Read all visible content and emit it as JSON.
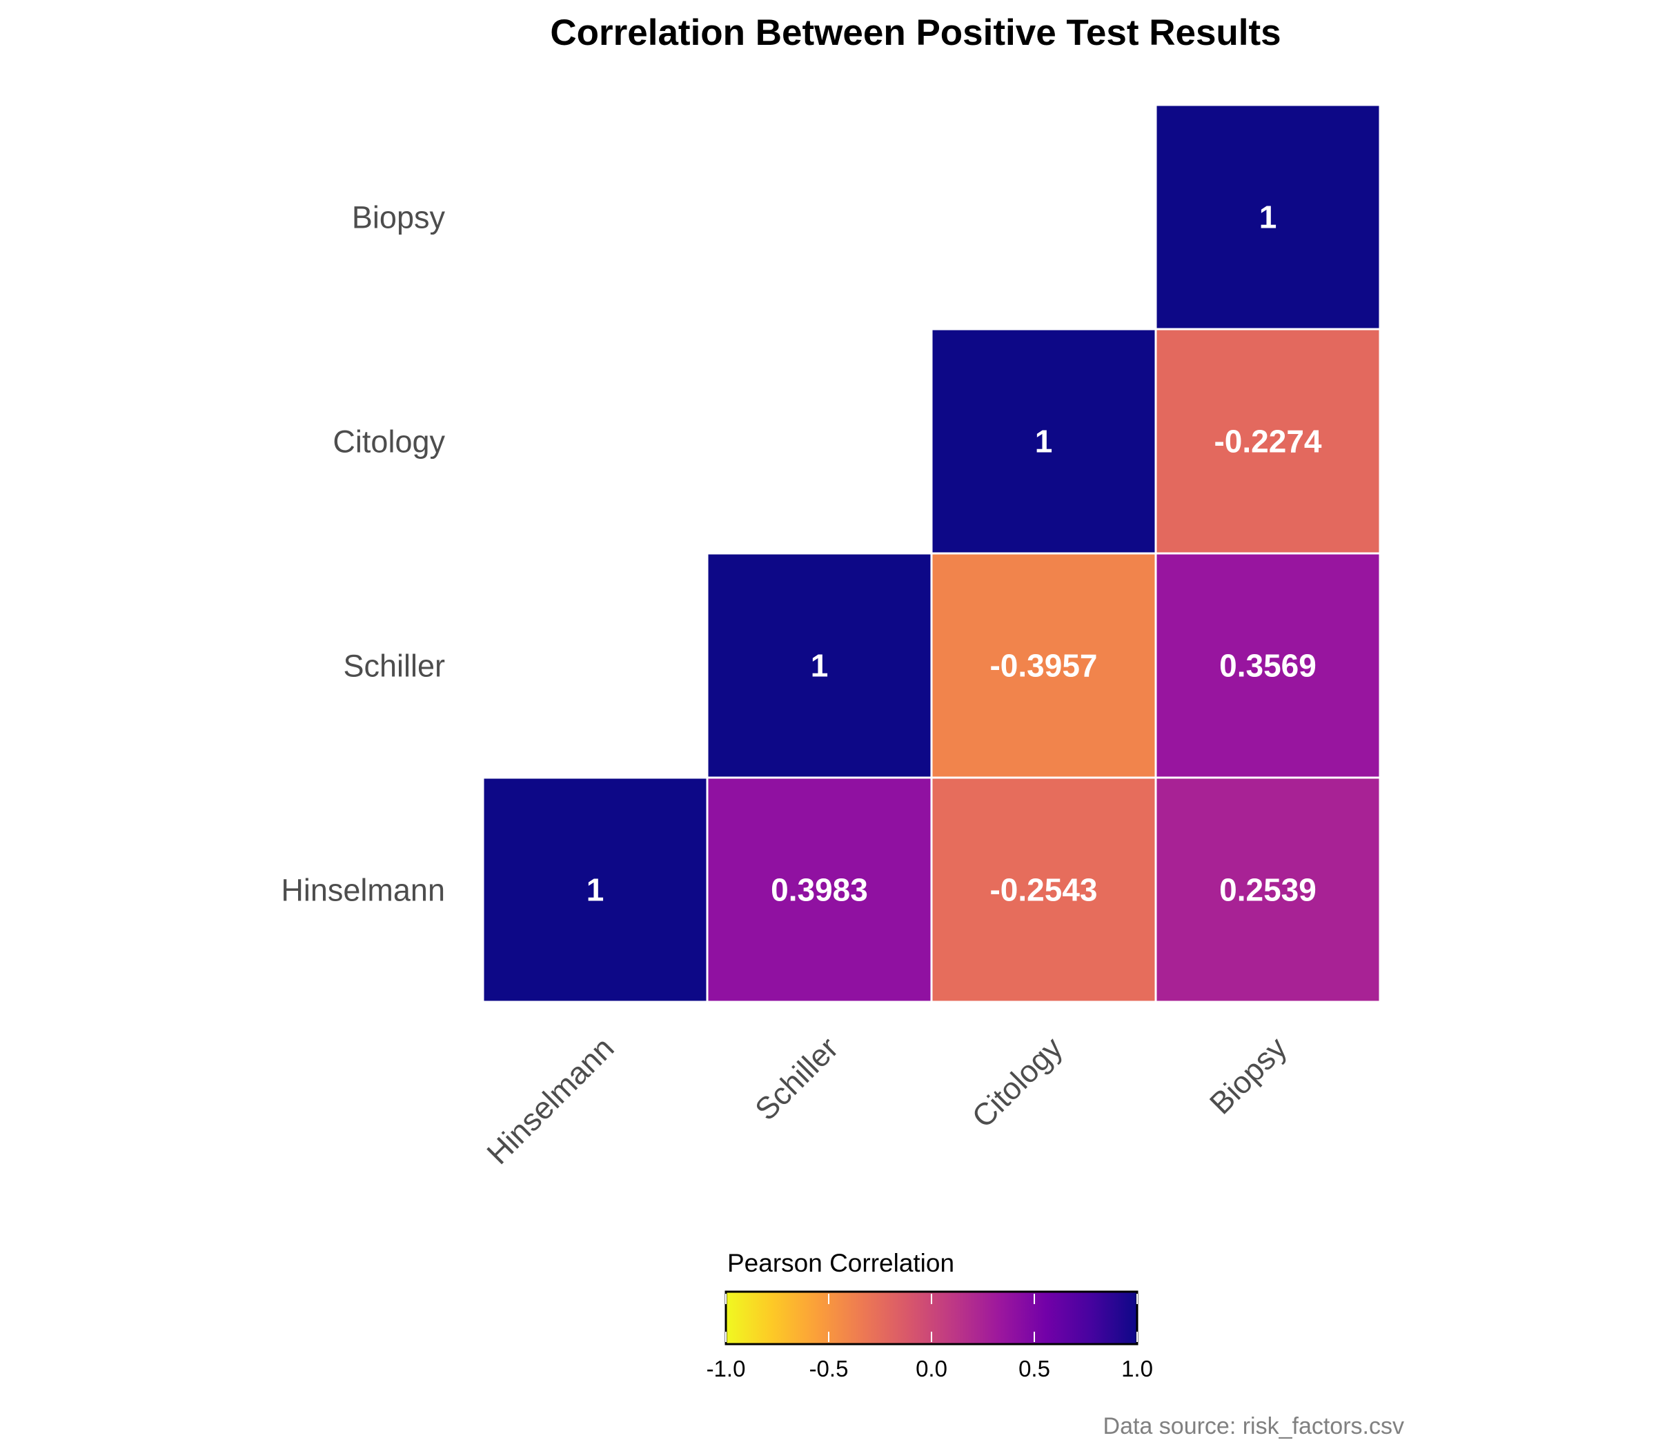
{
  "chart_data": {
    "type": "heatmap",
    "title": "Correlation Between Positive Test Results",
    "variables": [
      "Hinselmann",
      "Schiller",
      "Citology",
      "Biopsy"
    ],
    "cells": [
      {
        "row": "Hinselmann",
        "col": "Hinselmann",
        "value": 1,
        "label": "1"
      },
      {
        "row": "Hinselmann",
        "col": "Schiller",
        "value": 0.3983,
        "label": "0.3983"
      },
      {
        "row": "Hinselmann",
        "col": "Citology",
        "value": -0.2543,
        "label": "-0.2543"
      },
      {
        "row": "Hinselmann",
        "col": "Biopsy",
        "value": 0.2539,
        "label": "0.2539"
      },
      {
        "row": "Schiller",
        "col": "Schiller",
        "value": 1,
        "label": "1"
      },
      {
        "row": "Schiller",
        "col": "Citology",
        "value": -0.3957,
        "label": "-0.3957"
      },
      {
        "row": "Schiller",
        "col": "Biopsy",
        "value": 0.3569,
        "label": "0.3569"
      },
      {
        "row": "Citology",
        "col": "Citology",
        "value": 1,
        "label": "1"
      },
      {
        "row": "Citology",
        "col": "Biopsy",
        "value": -0.2274,
        "label": "-0.2274"
      },
      {
        "row": "Biopsy",
        "col": "Biopsy",
        "value": 1,
        "label": "1"
      }
    ],
    "colorbar": {
      "title": "Pearson Correlation",
      "range": [
        -1,
        1
      ],
      "ticks": [
        "-1.0",
        "-0.5",
        "0.0",
        "0.5",
        "1.0"
      ],
      "tick_values": [
        -1,
        -0.5,
        0,
        0.5,
        1
      ],
      "placement": "bottom",
      "colormap": "plasma (reversed)",
      "color_stops": [
        "#f0f921",
        "#fdca26",
        "#fb9f3a",
        "#ed7953",
        "#d8576b",
        "#bd3786",
        "#9c179e",
        "#7201a8",
        "#46039f",
        "#0d0887"
      ]
    },
    "caption": "Data source: risk_factors.csv",
    "grid": false
  }
}
